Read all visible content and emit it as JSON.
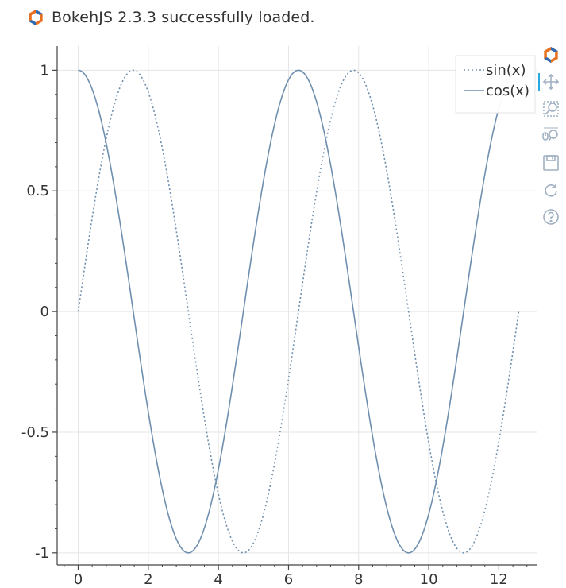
{
  "banner": {
    "message": "BokehJS 2.3.3 successfully loaded."
  },
  "colors": {
    "line": "#6f8faf",
    "grid": "#e5e5e5",
    "axis": "#444444",
    "logo_orange": "#e8701e",
    "logo_blue": "#2e6bb3",
    "toolbar_icon": "#a0b0c2",
    "active_tool": "#26aae1"
  },
  "toolbar": {
    "tools": [
      {
        "name": "bokeh-logo",
        "icon": "bokeh-logo-icon"
      },
      {
        "name": "pan",
        "icon": "pan-icon"
      },
      {
        "name": "box-zoom",
        "icon": "box-zoom-icon"
      },
      {
        "name": "wheel-zoom",
        "icon": "wheel-zoom-icon"
      },
      {
        "name": "save",
        "icon": "save-icon"
      },
      {
        "name": "reset",
        "icon": "reset-icon"
      },
      {
        "name": "help",
        "icon": "help-icon"
      }
    ]
  },
  "chart_data": {
    "type": "line",
    "title": "",
    "xlabel": "",
    "ylabel": "",
    "xlim": [
      -0.6,
      13.1
    ],
    "ylim": [
      -1.05,
      1.1
    ],
    "x_ticks": [
      0,
      2,
      4,
      6,
      8,
      10,
      12
    ],
    "x_tick_labels": [
      "0",
      "2",
      "4",
      "6",
      "8",
      "10",
      "12"
    ],
    "y_ticks": [
      1,
      0.5,
      0,
      -0.5,
      -1
    ],
    "y_tick_labels": [
      "1",
      "0.5",
      "0",
      "-0.5",
      "-1"
    ],
    "grid": true,
    "legend": {
      "placement": "top-right"
    },
    "x_range": [
      0,
      12.566
    ],
    "series": [
      {
        "name": "sin(x)",
        "style": "dotted",
        "function": "sin(x)",
        "x": [
          0,
          0.785,
          1.571,
          2.356,
          3.142,
          3.927,
          4.712,
          5.498,
          6.283,
          7.069,
          7.854,
          8.639,
          9.425,
          10.21,
          10.996,
          11.781,
          12.566
        ],
        "y": [
          0,
          0.707,
          1,
          0.707,
          0,
          -0.707,
          -1,
          -0.707,
          0,
          0.707,
          1,
          0.707,
          0,
          -0.707,
          -1,
          -0.707,
          0
        ]
      },
      {
        "name": "cos(x)",
        "style": "solid",
        "function": "cos(x)",
        "x": [
          0,
          0.785,
          1.571,
          2.356,
          3.142,
          3.927,
          4.712,
          5.498,
          6.283,
          7.069,
          7.854,
          8.639,
          9.425,
          10.21,
          10.996,
          11.781,
          12.566
        ],
        "y": [
          1,
          0.707,
          0,
          -0.707,
          -1,
          -0.707,
          0,
          0.707,
          1,
          0.707,
          0,
          -0.707,
          -1,
          -0.707,
          0,
          0.707,
          1
        ]
      }
    ]
  }
}
